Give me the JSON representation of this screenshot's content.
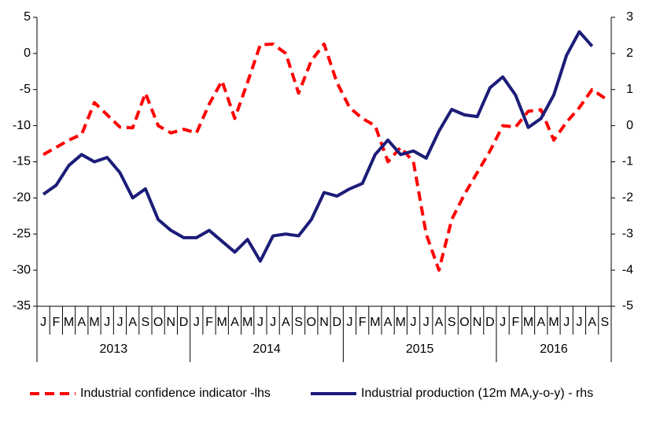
{
  "chart_data": {
    "type": "line",
    "categories": [
      "J",
      "F",
      "M",
      "A",
      "M",
      "J",
      "J",
      "A",
      "S",
      "O",
      "N",
      "D",
      "J",
      "F",
      "M",
      "A",
      "M",
      "J",
      "J",
      "A",
      "S",
      "O",
      "N",
      "D",
      "J",
      "F",
      "M",
      "A",
      "M",
      "J",
      "J",
      "A",
      "S",
      "O",
      "N",
      "D",
      "J",
      "F",
      "M",
      "A",
      "M",
      "J",
      "J",
      "A",
      "S"
    ],
    "years": [
      "2013",
      "2014",
      "2015",
      "2016"
    ],
    "series": [
      {
        "name": "Industrial confidence indicator -lhs",
        "color": "#ff0000",
        "dash": true,
        "axis": "y",
        "values": [
          -14,
          -13,
          -12,
          -11.2,
          -6.8,
          -8.5,
          -10.2,
          -10.3,
          -5.5,
          -10,
          -11,
          -10.5,
          -11,
          -7,
          -3.8,
          -9,
          -4,
          1.2,
          1.3,
          0,
          -5.5,
          -1,
          1.3,
          -4,
          -7.5,
          -9,
          -10,
          -15,
          -13,
          -15,
          -25,
          -30,
          -23,
          -19.5,
          -16.5,
          -13.5,
          -10,
          -10.2,
          -8,
          -7.8,
          -12,
          -9.5,
          -7.5,
          -5,
          -6.2
        ]
      },
      {
        "name": "Industrial production (12m MA,y-o-y) - rhs",
        "color": "#1c1c78",
        "dash": false,
        "axis": "y2",
        "values": [
          -1.9,
          -1.65,
          -1.1,
          -0.8,
          -1.0,
          -0.88,
          -1.3,
          -2.0,
          -1.75,
          -2.6,
          -2.9,
          -3.1,
          -3.1,
          -2.9,
          -3.2,
          -3.5,
          -3.15,
          -3.75,
          -3.05,
          -3.0,
          -3.05,
          -2.6,
          -1.85,
          -1.95,
          -1.75,
          -1.6,
          -0.8,
          -0.4,
          -0.8,
          -0.7,
          -0.9,
          -0.15,
          0.45,
          0.3,
          0.25,
          1.05,
          1.35,
          0.85,
          -0.05,
          0.2,
          0.85,
          1.95,
          2.6,
          2.2,
          null
        ]
      }
    ],
    "ylim": [
      -35,
      5
    ],
    "yticks": [
      5,
      0,
      -5,
      -10,
      -15,
      -20,
      -25,
      -30,
      -35
    ],
    "y2lim": [
      -5,
      3
    ],
    "y2ticks": [
      3,
      2,
      1,
      0,
      -1,
      -2,
      -3,
      -4,
      -5
    ]
  }
}
